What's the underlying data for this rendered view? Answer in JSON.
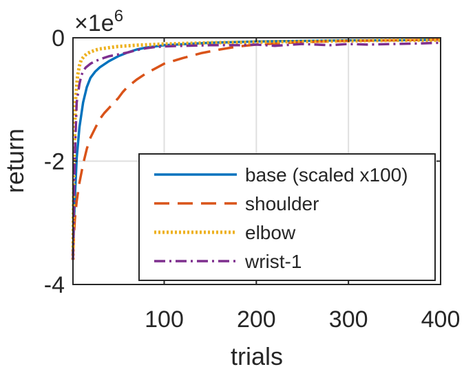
{
  "chart_data": {
    "type": "line",
    "title": "",
    "xlabel": "trials",
    "ylabel": "return",
    "y_multiplier_label": "×1e",
    "y_multiplier_exponent": "6",
    "xlim": [
      1,
      400
    ],
    "ylim": [
      -4,
      0
    ],
    "x_ticks": [
      100,
      200,
      300,
      400
    ],
    "x_tick_labels": [
      "100",
      "200",
      "300",
      "400"
    ],
    "y_ticks": [
      -4,
      -2,
      0
    ],
    "y_tick_labels": [
      "-4",
      "-2",
      "0"
    ],
    "grid": true,
    "legend_position": "bottom-right",
    "series": [
      {
        "name": "base (scaled x100)",
        "color": "#0072bd",
        "dash": "solid",
        "x": [
          1,
          3,
          5,
          8,
          12,
          16,
          20,
          25,
          30,
          40,
          50,
          60,
          70,
          80,
          100,
          150,
          200,
          250,
          300,
          350,
          400
        ],
        "y": [
          -3.5,
          -2.6,
          -1.95,
          -1.45,
          -1.05,
          -0.8,
          -0.65,
          -0.55,
          -0.48,
          -0.38,
          -0.3,
          -0.24,
          -0.19,
          -0.16,
          -0.12,
          -0.08,
          -0.06,
          -0.05,
          -0.04,
          -0.04,
          -0.03
        ]
      },
      {
        "name": "shoulder",
        "color": "#d95319",
        "dash": "dashed",
        "x": [
          1,
          3,
          5,
          8,
          12,
          16,
          20,
          25,
          30,
          35,
          40,
          45,
          50,
          55,
          60,
          70,
          80,
          90,
          100,
          120,
          140,
          160,
          180,
          200,
          250,
          300,
          350,
          400
        ],
        "y": [
          -3.5,
          -2.95,
          -2.65,
          -2.35,
          -2.05,
          -1.8,
          -1.62,
          -1.47,
          -1.32,
          -1.22,
          -1.14,
          -1.06,
          -0.98,
          -0.88,
          -0.8,
          -0.68,
          -0.58,
          -0.5,
          -0.42,
          -0.33,
          -0.25,
          -0.19,
          -0.14,
          -0.11,
          -0.07,
          -0.05,
          -0.04,
          -0.03
        ]
      },
      {
        "name": "elbow",
        "color": "#edb120",
        "dash": "dotted",
        "x": [
          1,
          2,
          3,
          4,
          6,
          8,
          10,
          13,
          16,
          20,
          25,
          30,
          40,
          50,
          70,
          100,
          150,
          200,
          250,
          300,
          350,
          400
        ],
        "y": [
          -3.6,
          -2.2,
          -1.4,
          -0.95,
          -0.62,
          -0.45,
          -0.36,
          -0.3,
          -0.26,
          -0.23,
          -0.2,
          -0.18,
          -0.16,
          -0.14,
          -0.12,
          -0.1,
          -0.08,
          -0.07,
          -0.06,
          -0.05,
          -0.04,
          -0.04
        ]
      },
      {
        "name": "wrist-1",
        "color": "#7e2f8e",
        "dash": "dashdot",
        "x": [
          1,
          3,
          5,
          8,
          10,
          12,
          15,
          20,
          25,
          30,
          40,
          50,
          60,
          70,
          80,
          90,
          100,
          120,
          150,
          180,
          200,
          220,
          250,
          280,
          300,
          320,
          350,
          380,
          400
        ],
        "y": [
          -3.6,
          -1.9,
          -1.05,
          -0.75,
          -0.62,
          -0.54,
          -0.48,
          -0.42,
          -0.38,
          -0.35,
          -0.3,
          -0.27,
          -0.24,
          -0.2,
          -0.17,
          -0.15,
          -0.14,
          -0.13,
          -0.12,
          -0.12,
          -0.11,
          -0.13,
          -0.1,
          -0.12,
          -0.1,
          -0.11,
          -0.1,
          -0.09,
          -0.08
        ]
      }
    ]
  }
}
